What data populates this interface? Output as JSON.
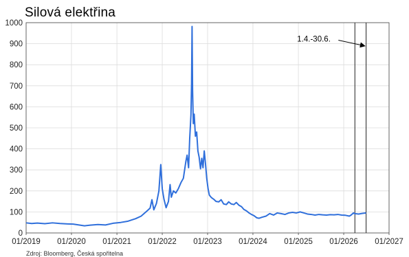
{
  "chart_data": {
    "type": "line",
    "title": "Silová elektřina",
    "xlabel": "",
    "ylabel": "",
    "xlim": [
      "2019-01-01",
      "2027-01-01"
    ],
    "ylim": [
      0,
      1000
    ],
    "x_ticks": [
      "01/2019",
      "01/2020",
      "01/2021",
      "01/2022",
      "01/2023",
      "01/2024",
      "01/2025",
      "01/2026",
      "01/2027"
    ],
    "y_ticks": [
      0,
      100,
      200,
      300,
      400,
      500,
      600,
      700,
      800,
      900,
      1000
    ],
    "grid": true,
    "series": [
      {
        "color": "#2f6fdb",
        "points": [
          [
            "2019-01-01",
            48
          ],
          [
            "2019-02-15",
            45
          ],
          [
            "2019-04-01",
            47
          ],
          [
            "2019-06-01",
            44
          ],
          [
            "2019-08-01",
            48
          ],
          [
            "2019-10-01",
            45
          ],
          [
            "2019-12-01",
            43
          ],
          [
            "2020-01-15",
            42
          ],
          [
            "2020-03-01",
            38
          ],
          [
            "2020-04-15",
            34
          ],
          [
            "2020-06-01",
            37
          ],
          [
            "2020-08-01",
            40
          ],
          [
            "2020-10-01",
            38
          ],
          [
            "2020-12-01",
            46
          ],
          [
            "2021-02-01",
            50
          ],
          [
            "2021-04-01",
            56
          ],
          [
            "2021-06-01",
            68
          ],
          [
            "2021-07-15",
            80
          ],
          [
            "2021-09-01",
            105
          ],
          [
            "2021-09-25",
            118
          ],
          [
            "2021-10-10",
            158
          ],
          [
            "2021-10-25",
            110
          ],
          [
            "2021-11-15",
            140
          ],
          [
            "2021-12-05",
            200
          ],
          [
            "2021-12-20",
            325
          ],
          [
            "2022-01-01",
            210
          ],
          [
            "2022-01-15",
            160
          ],
          [
            "2022-02-01",
            120
          ],
          [
            "2022-02-20",
            150
          ],
          [
            "2022-03-05",
            230
          ],
          [
            "2022-03-15",
            170
          ],
          [
            "2022-04-01",
            200
          ],
          [
            "2022-04-20",
            190
          ],
          [
            "2022-05-10",
            210
          ],
          [
            "2022-06-01",
            240
          ],
          [
            "2022-06-20",
            260
          ],
          [
            "2022-07-10",
            340
          ],
          [
            "2022-07-20",
            370
          ],
          [
            "2022-08-01",
            310
          ],
          [
            "2022-08-10",
            450
          ],
          [
            "2022-08-20",
            560
          ],
          [
            "2022-08-25",
            710
          ],
          [
            "2022-08-29",
            982
          ],
          [
            "2022-09-02",
            680
          ],
          [
            "2022-09-08",
            520
          ],
          [
            "2022-09-15",
            565
          ],
          [
            "2022-09-25",
            460
          ],
          [
            "2022-10-05",
            480
          ],
          [
            "2022-10-15",
            390
          ],
          [
            "2022-10-25",
            360
          ],
          [
            "2022-11-05",
            305
          ],
          [
            "2022-11-15",
            355
          ],
          [
            "2022-11-25",
            310
          ],
          [
            "2022-12-05",
            390
          ],
          [
            "2022-12-15",
            330
          ],
          [
            "2022-12-25",
            260
          ],
          [
            "2023-01-05",
            210
          ],
          [
            "2023-01-15",
            180
          ],
          [
            "2023-02-01",
            168
          ],
          [
            "2023-02-20",
            160
          ],
          [
            "2023-03-10",
            150
          ],
          [
            "2023-04-01",
            148
          ],
          [
            "2023-04-20",
            158
          ],
          [
            "2023-05-10",
            138
          ],
          [
            "2023-06-01",
            135
          ],
          [
            "2023-06-20",
            148
          ],
          [
            "2023-07-10",
            138
          ],
          [
            "2023-08-01",
            135
          ],
          [
            "2023-08-20",
            145
          ],
          [
            "2023-09-10",
            132
          ],
          [
            "2023-10-01",
            125
          ],
          [
            "2023-10-20",
            112
          ],
          [
            "2023-11-10",
            105
          ],
          [
            "2023-12-01",
            95
          ],
          [
            "2023-12-20",
            88
          ],
          [
            "2024-01-10",
            82
          ],
          [
            "2024-02-01",
            72
          ],
          [
            "2024-02-20",
            70
          ],
          [
            "2024-03-15",
            75
          ],
          [
            "2024-04-15",
            80
          ],
          [
            "2024-05-15",
            92
          ],
          [
            "2024-06-15",
            85
          ],
          [
            "2024-07-15",
            95
          ],
          [
            "2024-08-15",
            92
          ],
          [
            "2024-09-15",
            88
          ],
          [
            "2024-10-15",
            95
          ],
          [
            "2024-11-15",
            98
          ],
          [
            "2024-12-15",
            95
          ],
          [
            "2025-01-15",
            100
          ],
          [
            "2025-02-15",
            95
          ],
          [
            "2025-03-15",
            90
          ],
          [
            "2025-04-15",
            88
          ],
          [
            "2025-05-15",
            85
          ],
          [
            "2025-06-15",
            88
          ],
          [
            "2025-07-15",
            86
          ],
          [
            "2025-08-15",
            85
          ],
          [
            "2025-09-15",
            87
          ],
          [
            "2025-10-15",
            86
          ],
          [
            "2025-11-15",
            88
          ],
          [
            "2025-12-15",
            85
          ],
          [
            "2026-01-15",
            84
          ],
          [
            "2026-02-15",
            80
          ],
          [
            "2026-03-01",
            85
          ],
          [
            "2026-03-20",
            95
          ],
          [
            "2026-04-01",
            92
          ],
          [
            "2026-05-01",
            90
          ],
          [
            "2026-06-01",
            93
          ],
          [
            "2026-06-30",
            95
          ]
        ]
      }
    ],
    "vertical_lines": [
      "2026-04-01",
      "2026-06-30"
    ],
    "annotation": {
      "text": "1.4.-30.6.",
      "x": "2026-04-01",
      "y": 920,
      "target_x": "2026-06-15",
      "target_y": 890
    },
    "source_text": "Zdroj: Bloomberg, Česká spořitelna"
  }
}
